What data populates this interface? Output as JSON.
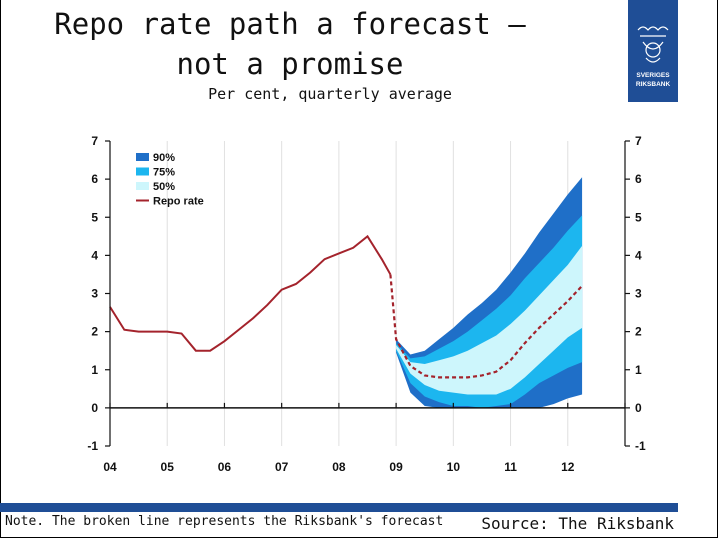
{
  "header": {
    "title": "Repo rate path a forecast – not a promise",
    "subtitle": "Per cent, quarterly average"
  },
  "logo": {
    "line1": "SVERIGES",
    "line2": "RIKSBANK",
    "color": "#1f4e96"
  },
  "footer": {
    "note": "Note. The broken line represents the Riksbank's forecast",
    "source": "Source: The Riksbank"
  },
  "colors": {
    "band90": "#1f6fc8",
    "band75": "#1cb6ef",
    "band50": "#cdf6fc",
    "repo": "#a4232c",
    "grid": "#e0e0e0"
  },
  "chart_data": {
    "type": "area",
    "title": "Repo rate path a forecast – not a promise",
    "subtitle": "Per cent, quarterly average",
    "x_ticks": [
      "04",
      "05",
      "06",
      "07",
      "08",
      "09",
      "10",
      "11",
      "12"
    ],
    "y_ticks": [
      "7",
      "6",
      "5",
      "4",
      "3",
      "2",
      "1",
      "0",
      "-1"
    ],
    "xlim": [
      2004.0,
      2013.0
    ],
    "ylim": [
      -1,
      7
    ],
    "grid": true,
    "legend_position": "top-left",
    "legend": [
      {
        "label": "90%",
        "key": "band90"
      },
      {
        "label": "75%",
        "key": "band75"
      },
      {
        "label": "50%",
        "key": "band50"
      },
      {
        "label": "Repo rate",
        "key": "repo"
      }
    ],
    "repo_rate_outcome": {
      "x": [
        2004.0,
        2004.25,
        2004.5,
        2004.75,
        2005.0,
        2005.25,
        2005.5,
        2005.75,
        2006.0,
        2006.25,
        2006.5,
        2006.75,
        2007.0,
        2007.25,
        2007.5,
        2007.75,
        2008.0,
        2008.25,
        2008.5,
        2008.75,
        2008.9
      ],
      "y": [
        2.65,
        2.05,
        2.0,
        2.0,
        2.0,
        1.95,
        1.5,
        1.5,
        1.75,
        2.05,
        2.35,
        2.7,
        3.1,
        3.25,
        3.55,
        3.9,
        4.05,
        4.2,
        4.5,
        3.9,
        3.5
      ]
    },
    "repo_rate_forecast": {
      "x": [
        2008.9,
        2009.0,
        2009.25,
        2009.5,
        2009.75,
        2010.0,
        2010.25,
        2010.5,
        2010.75,
        2011.0,
        2011.25,
        2011.5,
        2011.75,
        2012.0,
        2012.25
      ],
      "y": [
        3.5,
        1.8,
        1.1,
        0.85,
        0.8,
        0.8,
        0.8,
        0.85,
        0.95,
        1.25,
        1.7,
        2.1,
        2.45,
        2.8,
        3.2
      ]
    },
    "bands": {
      "x": [
        2009.0,
        2009.25,
        2009.5,
        2009.75,
        2010.0,
        2010.25,
        2010.5,
        2010.75,
        2011.0,
        2011.25,
        2011.5,
        2011.75,
        2012.0,
        2012.25
      ],
      "p90_upper": [
        1.8,
        1.4,
        1.5,
        1.8,
        2.1,
        2.45,
        2.75,
        3.1,
        3.55,
        4.05,
        4.6,
        5.1,
        5.6,
        6.05
      ],
      "p75_upper": [
        1.7,
        1.3,
        1.35,
        1.55,
        1.75,
        2.0,
        2.3,
        2.6,
        2.95,
        3.4,
        3.8,
        4.2,
        4.65,
        5.05
      ],
      "p50_upper": [
        1.65,
        1.2,
        1.15,
        1.25,
        1.35,
        1.5,
        1.7,
        1.9,
        2.2,
        2.55,
        2.95,
        3.35,
        3.75,
        4.25
      ],
      "p50_lower": [
        1.55,
        0.9,
        0.6,
        0.45,
        0.4,
        0.35,
        0.35,
        0.35,
        0.5,
        0.8,
        1.15,
        1.5,
        1.85,
        2.1
      ],
      "p75_lower": [
        1.5,
        0.65,
        0.3,
        0.15,
        0.05,
        0.05,
        0.0,
        0.05,
        0.1,
        0.35,
        0.65,
        0.85,
        1.05,
        1.2
      ],
      "p90_lower": [
        1.45,
        0.4,
        0.05,
        0.0,
        0.0,
        0.0,
        0.0,
        0.0,
        0.0,
        0.0,
        0.0,
        0.1,
        0.25,
        0.35
      ]
    }
  }
}
